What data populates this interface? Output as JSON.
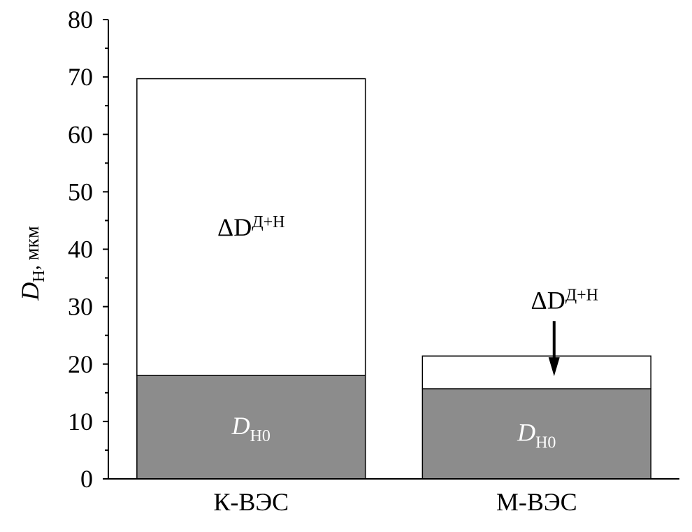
{
  "chart_data": {
    "type": "stacked_bar",
    "y_label": {
      "main": "D",
      "sub": "Н",
      "unit": ", мкм"
    },
    "categories": [
      "К-ВЭС",
      "М-ВЭС"
    ],
    "series": [
      {
        "name": "D",
        "subscript": "Н0",
        "color": "#8c8c8c",
        "values": [
          18.0,
          15.7
        ]
      },
      {
        "name": "ΔD",
        "superscript": "Д+Н",
        "color": "#ffffff",
        "values": [
          51.7,
          5.7
        ]
      }
    ],
    "ylim": [
      0,
      80
    ],
    "yticks": [
      0,
      10,
      20,
      30,
      40,
      50,
      60,
      70,
      80
    ],
    "minor_yticks": [
      5,
      15,
      25,
      35,
      45,
      55,
      65,
      75
    ]
  }
}
